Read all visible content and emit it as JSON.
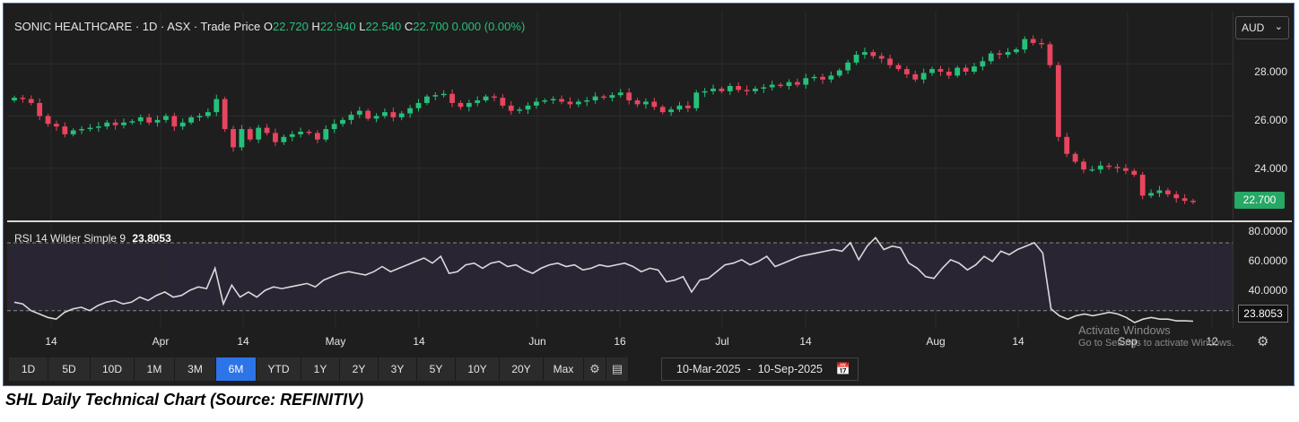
{
  "legend": {
    "name": "SONIC HEALTHCARE · 1D · ASX · Trade Price",
    "o_key": "O",
    "o": "22.720",
    "h_key": "H",
    "h": "22.940",
    "l_key": "L",
    "l": "22.540",
    "c_key": "C",
    "c": "22.700",
    "change": "0.000 (0.00%)"
  },
  "currency": "AUD",
  "last_price": "22.700",
  "price_axis_labels": [
    "28.000",
    "26.000",
    "24.000"
  ],
  "rsi": {
    "label": "RSI 14 Wilder Simple 9",
    "value": "23.8053",
    "axis_labels": [
      "80.0000",
      "60.0000",
      "40.0000"
    ]
  },
  "time_axis_labels": [
    "14",
    "Apr",
    "14",
    "May",
    "14",
    "Jun",
    "16",
    "Jul",
    "14",
    "Aug",
    "14",
    "Sep",
    "12"
  ],
  "watermark": {
    "line1": "Activate Windows",
    "line2": "Go to Settings to activate Windows."
  },
  "range_buttons": [
    "1D",
    "5D",
    "10D",
    "1M",
    "3M",
    "6M",
    "YTD",
    "1Y",
    "2Y",
    "3Y",
    "5Y",
    "10Y",
    "20Y",
    "Max"
  ],
  "active_range": "6M",
  "date_range": {
    "from": "10-Mar-2025",
    "to": "10-Sep-2025",
    "sep": "-"
  },
  "caption": "SHL Daily Technical Chart (Source: REFINITIV)",
  "colors": {
    "up": "#26c07a",
    "down": "#e8455e",
    "rsi_line": "#d9d9d9",
    "rsi_band": "#2a2533",
    "background": "#1e1e1e",
    "accent": "#2d74e8"
  },
  "chart_data": [
    {
      "type": "candlestick",
      "title": "SONIC HEALTHCARE · 1D · ASX · Trade Price",
      "ylim": [
        22.0,
        30.0
      ],
      "yticks": [
        24,
        26,
        28
      ],
      "x_tick_labels": [
        "14",
        "Apr",
        "14",
        "May",
        "14",
        "Jun",
        "16",
        "Jul",
        "14",
        "Aug",
        "14",
        "Sep",
        "12"
      ],
      "x_range": [
        "10-Mar-2025",
        "10-Sep-2025"
      ],
      "grid": true,
      "closes": [
        26.7,
        26.65,
        26.5,
        26.0,
        25.7,
        25.6,
        25.3,
        25.45,
        25.5,
        25.55,
        25.6,
        25.75,
        25.65,
        25.75,
        25.8,
        25.95,
        25.75,
        25.85,
        26.0,
        25.6,
        25.75,
        25.95,
        26.0,
        26.15,
        26.65,
        25.5,
        24.8,
        25.5,
        25.1,
        25.55,
        25.35,
        25.0,
        25.2,
        25.3,
        25.4,
        25.35,
        25.1,
        25.5,
        25.7,
        25.85,
        26.05,
        26.2,
        25.9,
        26.0,
        26.15,
        25.95,
        26.1,
        26.3,
        26.5,
        26.75,
        26.8,
        26.85,
        26.5,
        26.35,
        26.5,
        26.6,
        26.75,
        26.7,
        26.4,
        26.2,
        26.25,
        26.4,
        26.55,
        26.6,
        26.65,
        26.55,
        26.45,
        26.55,
        26.6,
        26.75,
        26.7,
        26.8,
        26.9,
        26.6,
        26.45,
        26.55,
        26.35,
        26.15,
        26.25,
        26.4,
        26.3,
        26.9,
        26.95,
        27.05,
        26.95,
        27.15,
        27.0,
        26.95,
        27.05,
        27.1,
        27.2,
        27.15,
        27.3,
        27.2,
        27.45,
        27.5,
        27.4,
        27.55,
        27.75,
        28.05,
        28.35,
        28.45,
        28.3,
        28.2,
        27.95,
        27.8,
        27.6,
        27.4,
        27.65,
        27.8,
        27.7,
        27.55,
        27.85,
        27.7,
        27.9,
        28.1,
        28.4,
        28.35,
        28.45,
        28.55,
        28.95,
        28.8,
        28.75,
        27.95,
        25.2,
        24.55,
        24.25,
        23.95,
        23.95,
        24.1,
        24.05,
        24.0,
        23.9,
        23.75,
        22.95,
        23.05,
        23.15,
        23.0,
        22.85,
        22.75,
        22.7
      ]
    },
    {
      "type": "line",
      "title": "RSI 14 Wilder Simple 9",
      "ylim": [
        20,
        80
      ],
      "yticks": [
        40,
        60,
        80
      ],
      "band": [
        30,
        70
      ],
      "x_tick_labels": [
        "14",
        "Apr",
        "14",
        "May",
        "14",
        "Jun",
        "16",
        "Jul",
        "14",
        "Aug",
        "14",
        "Sep",
        "12"
      ],
      "series": [
        {
          "values": [
            35,
            34,
            30,
            28,
            26,
            25,
            29,
            31,
            32,
            30,
            33,
            35,
            36,
            34,
            35,
            38,
            36,
            39,
            41,
            38,
            39,
            42,
            44,
            43,
            55,
            34,
            45,
            38,
            41,
            38,
            42,
            44,
            43,
            44,
            45,
            46,
            44,
            48,
            50,
            52,
            53,
            52,
            51,
            53,
            56,
            53,
            55,
            57,
            59,
            61,
            58,
            62,
            52,
            53,
            57,
            58,
            55,
            58,
            59,
            56,
            57,
            54,
            52,
            55,
            57,
            58,
            56,
            57,
            54,
            55,
            57,
            56,
            57,
            58,
            56,
            53,
            55,
            54,
            47,
            48,
            50,
            41,
            48,
            49,
            53,
            57,
            58,
            60,
            57,
            59,
            62,
            56,
            58,
            60,
            62,
            63,
            64,
            65,
            66,
            65,
            70,
            60,
            68,
            73,
            66,
            68,
            67,
            58,
            55,
            50,
            49,
            55,
            60,
            58,
            54,
            57,
            62,
            59,
            65,
            63,
            66,
            68,
            70,
            64,
            31,
            27,
            25,
            27,
            28,
            27,
            28,
            29,
            28,
            26,
            23,
            25,
            26,
            25,
            25,
            24,
            24,
            23.8053
          ]
        }
      ]
    }
  ]
}
